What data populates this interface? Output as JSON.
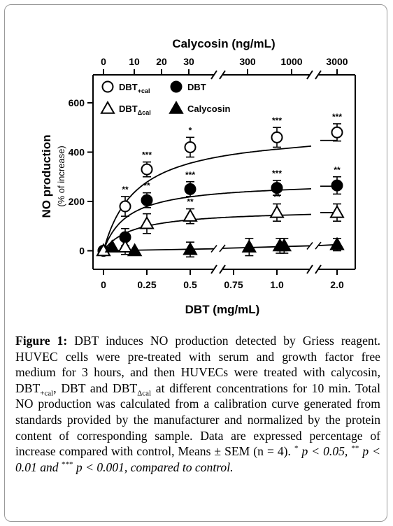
{
  "chart_data": {
    "type": "scatter",
    "top_axis": {
      "label": "Calycosin (ng/mL)",
      "ticks": [
        "0",
        "10",
        "20",
        "30",
        "300",
        "1000",
        "3000"
      ]
    },
    "bottom_axis": {
      "label": "DBT (mg/mL)",
      "ticks": [
        {
          "value": 0,
          "label": "0"
        },
        {
          "value": 0.25,
          "label": "0.25"
        },
        {
          "value": 0.5,
          "label": "0.5"
        },
        {
          "value": 0.75,
          "label": "0.75"
        },
        {
          "value": 1.0,
          "label": "1.0"
        },
        {
          "value": 2.0,
          "label": "2.0"
        }
      ]
    },
    "ylabel": "NO production",
    "ylabel_sub": "(% of increase)",
    "y_ticks": [
      0,
      200,
      400,
      600
    ],
    "ylim": [
      -40,
      720
    ],
    "legend": [
      {
        "name": "DBT",
        "sub": "+cal",
        "marker": "open-circle"
      },
      {
        "name": "DBT",
        "sub": "",
        "marker": "filled-circle"
      },
      {
        "name": "DBT",
        "sub": "Δcal",
        "marker": "open-triangle"
      },
      {
        "name": "Calycosin",
        "sub": "",
        "marker": "filled-triangle"
      }
    ],
    "series": [
      {
        "name": "DBT+cal",
        "marker": "open-circle",
        "points": [
          {
            "x": 0,
            "y": 0,
            "err": 0,
            "sig": ""
          },
          {
            "x": 0.125,
            "y": 180,
            "err": 40,
            "sig": "**"
          },
          {
            "x": 0.25,
            "y": 330,
            "err": 30,
            "sig": "***"
          },
          {
            "x": 0.5,
            "y": 420,
            "err": 40,
            "sig": "*"
          },
          {
            "x": 1.0,
            "y": 460,
            "err": 40,
            "sig": "***"
          },
          {
            "x": 2.0,
            "y": 480,
            "err": 35,
            "sig": "***"
          }
        ]
      },
      {
        "name": "DBT",
        "marker": "filled-circle",
        "points": [
          {
            "x": 0,
            "y": 0,
            "err": 0,
            "sig": ""
          },
          {
            "x": 0.125,
            "y": 55,
            "err": 35,
            "sig": ""
          },
          {
            "x": 0.25,
            "y": 205,
            "err": 30,
            "sig": "**"
          },
          {
            "x": 0.5,
            "y": 250,
            "err": 30,
            "sig": "***"
          },
          {
            "x": 1.0,
            "y": 255,
            "err": 30,
            "sig": "***"
          },
          {
            "x": 2.0,
            "y": 265,
            "err": 35,
            "sig": "**"
          }
        ]
      },
      {
        "name": "DBTΔcal",
        "marker": "open-triangle",
        "points": [
          {
            "x": 0,
            "y": 0,
            "err": 0,
            "sig": ""
          },
          {
            "x": 0.125,
            "y": 15,
            "err": 30,
            "sig": ""
          },
          {
            "x": 0.25,
            "y": 110,
            "err": 40,
            "sig": ""
          },
          {
            "x": 0.5,
            "y": 140,
            "err": 30,
            "sig": "**"
          },
          {
            "x": 1.0,
            "y": 155,
            "err": 35,
            "sig": "**"
          },
          {
            "x": 2.0,
            "y": 155,
            "err": 35,
            "sig": ""
          }
        ]
      },
      {
        "name": "Calycosin",
        "marker": "filled-triangle",
        "points": [
          {
            "xt": 0.05,
            "y": 15,
            "err": 0
          },
          {
            "xt": 0.18,
            "y": 0,
            "err": 0
          },
          {
            "xt": 0.5,
            "y": 5,
            "err": 30
          },
          {
            "xt": 0.84,
            "y": 15,
            "err": 35
          },
          {
            "xt": 1.05,
            "y": 20,
            "err": 30
          },
          {
            "xt": 1.12,
            "y": 20,
            "err": 30
          },
          {
            "xt": 2.0,
            "y": 25,
            "err": 25
          }
        ]
      }
    ]
  },
  "caption": {
    "label": "Figure 1:",
    "text_1": " DBT induces NO production detected by Griess reagent. HUVEC cells were pre-treated with serum and growth factor free medium for 3 hours, and then HUVECs were treated with calycosin, DBT",
    "sub_cal": "+cal",
    "text_2": ", DBT and DBT",
    "sub_dcal": "Δcal",
    "text_3": " at different concentrations for 10 min. Total NO production was calculated from a calibration curve generated from standards provided by the manufacturer and normalized by the protein content of corresponding sample. Data are expressed percentage of increase compared with control, Means ± SEM (n = 4). ",
    "sup_1": "*",
    "p1": " p < 0.05, ",
    "sup_2": "**",
    "p2": " p < 0.01 and ",
    "sup_3": "***",
    "p3": " p < 0.001, compared to control."
  }
}
